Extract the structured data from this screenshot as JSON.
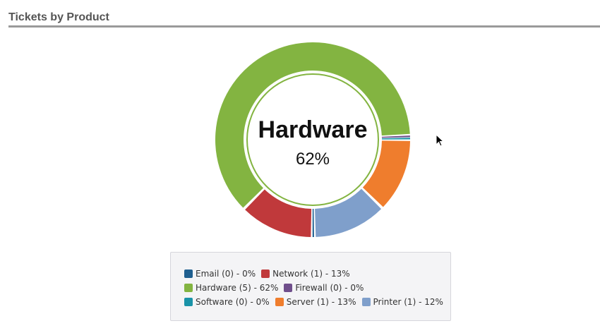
{
  "header": {
    "title": "Tickets by Product"
  },
  "chart_data": {
    "type": "pie",
    "variant": "donut",
    "categories": [
      "Email",
      "Network",
      "Hardware",
      "Firewall",
      "Software",
      "Server",
      "Printer"
    ],
    "values": [
      0,
      1,
      5,
      0,
      0,
      1,
      1
    ],
    "percents": [
      0,
      13,
      62,
      0,
      0,
      13,
      12
    ],
    "colors": [
      "#1f5f8f",
      "#c0393b",
      "#83b441",
      "#6f4e8b",
      "#1a93a8",
      "#ef7d2d",
      "#7f9fcb"
    ],
    "center": {
      "label": "Hardware",
      "value": "62%"
    },
    "legend_position": "bottom"
  },
  "legend": {
    "rows": [
      [
        {
          "text": "Email (0) - 0%",
          "color": "#1f5f8f"
        },
        {
          "text": "Network (1) - 13%",
          "color": "#c0393b"
        }
      ],
      [
        {
          "text": "Hardware (5) - 62%",
          "color": "#83b441"
        },
        {
          "text": "Firewall (0) - 0%",
          "color": "#6f4e8b"
        }
      ],
      [
        {
          "text": "Software (0) - 0%",
          "color": "#1a93a8"
        },
        {
          "text": "Server (1) - 13%",
          "color": "#ef7d2d"
        },
        {
          "text": "Printer (1) - 12%",
          "color": "#7f9fcb"
        }
      ]
    ]
  },
  "icons": {
    "cursor": "mouse-pointer-icon"
  }
}
